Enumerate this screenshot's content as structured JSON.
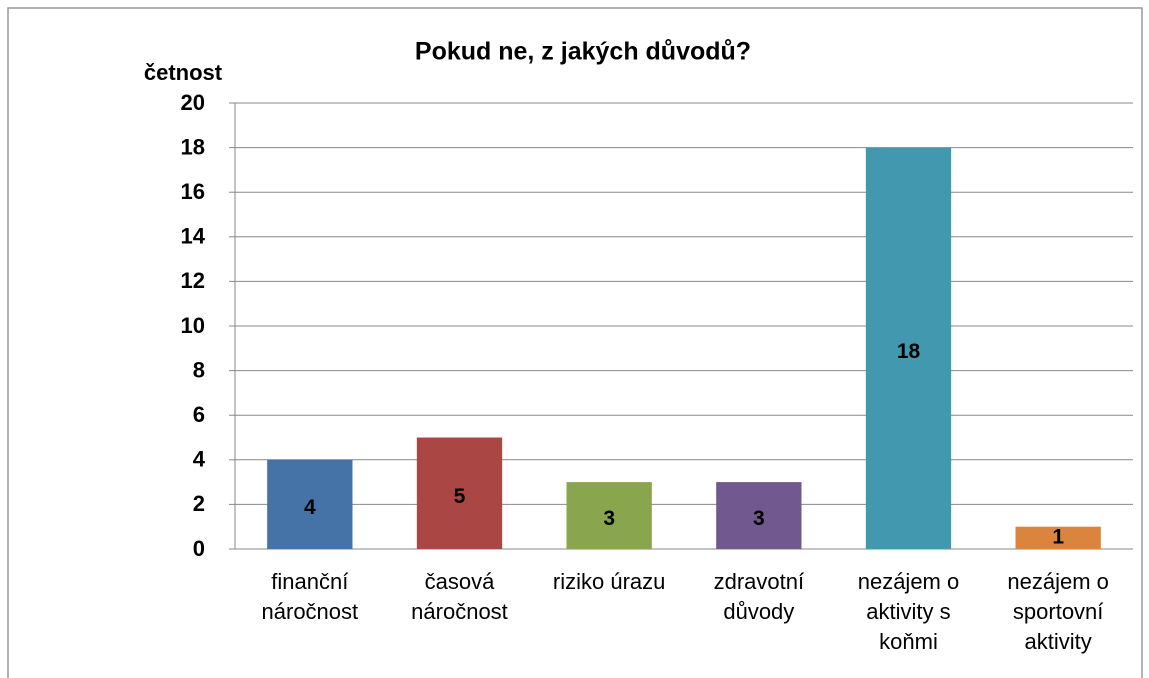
{
  "chart_data": {
    "type": "bar",
    "title": "Pokud ne, z jakých důvodů?",
    "y_label": "četnost",
    "categories": [
      "finanční náročnost",
      "časová náročnost",
      "riziko úrazu",
      "zdravotní důvody",
      "nezájem o aktivity s koňmi",
      "nezájem o sportovní aktivity"
    ],
    "values": [
      4,
      5,
      3,
      3,
      18,
      1
    ],
    "colors": [
      "#4572a7",
      "#aa4643",
      "#89a54e",
      "#71588f",
      "#4198af",
      "#db843d"
    ],
    "ylim": [
      0,
      20
    ],
    "yticks": [
      0,
      2,
      4,
      6,
      8,
      10,
      12,
      14,
      16,
      18,
      20
    ],
    "grid": true
  }
}
